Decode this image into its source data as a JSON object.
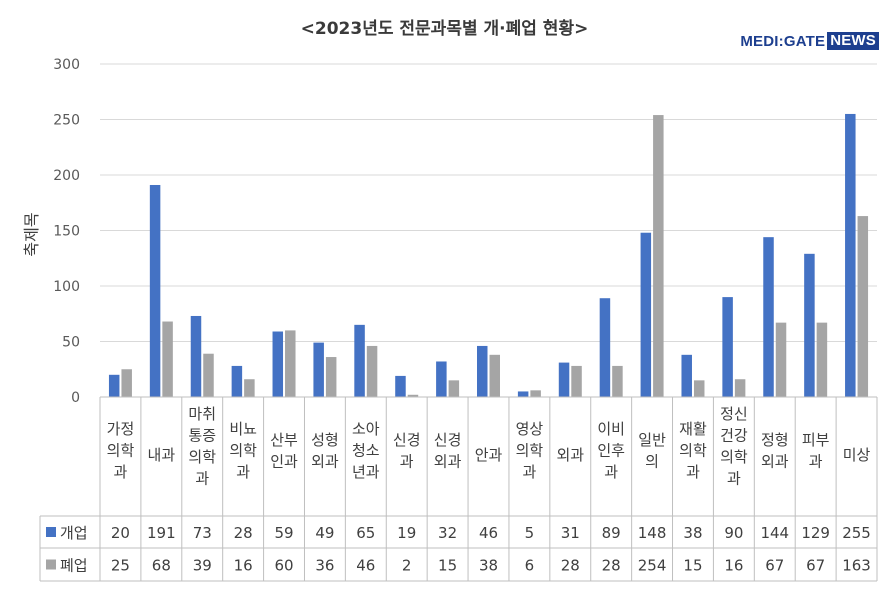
{
  "chart_data": {
    "type": "bar",
    "title": "<2023년도 전문과목별 개·폐업 현황>",
    "ylabel": "축제목",
    "ylim": [
      0,
      300
    ],
    "yticks": [
      0,
      50,
      100,
      150,
      200,
      250,
      300
    ],
    "grid": true,
    "legend": "table-left",
    "categories": [
      [
        "가정",
        "의학",
        "과"
      ],
      [
        "내과"
      ],
      [
        "마취",
        "통증",
        "의학",
        "과"
      ],
      [
        "비뇨",
        "의학",
        "과"
      ],
      [
        "산부",
        "인과"
      ],
      [
        "성형",
        "외과"
      ],
      [
        "소아",
        "청소",
        "년과"
      ],
      [
        "신경",
        "과"
      ],
      [
        "신경",
        "외과"
      ],
      [
        "안과"
      ],
      [
        "영상",
        "의학",
        "과"
      ],
      [
        "외과"
      ],
      [
        "이비",
        "인후",
        "과"
      ],
      [
        "일반",
        "의"
      ],
      [
        "재활",
        "의학",
        "과"
      ],
      [
        "정신",
        "건강",
        "의학",
        "과"
      ],
      [
        "정형",
        "외과"
      ],
      [
        "피부",
        "과"
      ],
      [
        "미상"
      ]
    ],
    "series": [
      {
        "name": "개업",
        "color": "#4472c4",
        "values": [
          20,
          191,
          73,
          28,
          59,
          49,
          65,
          19,
          32,
          46,
          5,
          31,
          89,
          148,
          38,
          90,
          144,
          129,
          255
        ]
      },
      {
        "name": "폐업",
        "color": "#a5a5a5",
        "values": [
          25,
          68,
          39,
          16,
          60,
          36,
          46,
          2,
          15,
          38,
          6,
          28,
          28,
          254,
          15,
          16,
          67,
          67,
          163
        ]
      }
    ]
  },
  "logo": {
    "medi": "MEDI:GATE",
    "news": "NEWS"
  }
}
